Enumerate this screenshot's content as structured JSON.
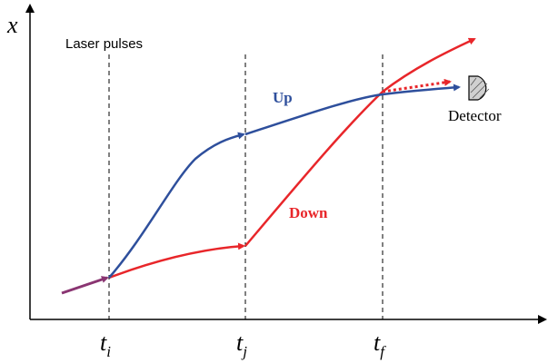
{
  "labels": {
    "axis_y": "x",
    "laser_pulses": "Laser pulses",
    "up": "Up",
    "down": "Down",
    "detector": "Detector"
  },
  "ticks": [
    {
      "base": "t",
      "sub": "i"
    },
    {
      "base": "t",
      "sub": "j"
    },
    {
      "base": "t",
      "sub": "f"
    }
  ],
  "colors": {
    "up": "#2e4f9c",
    "down": "#e8262a",
    "merged": "#8a3572",
    "axis": "#000000",
    "detector_fill": "#d0d0d0"
  },
  "icons": {
    "detector": "detector-icon"
  }
}
